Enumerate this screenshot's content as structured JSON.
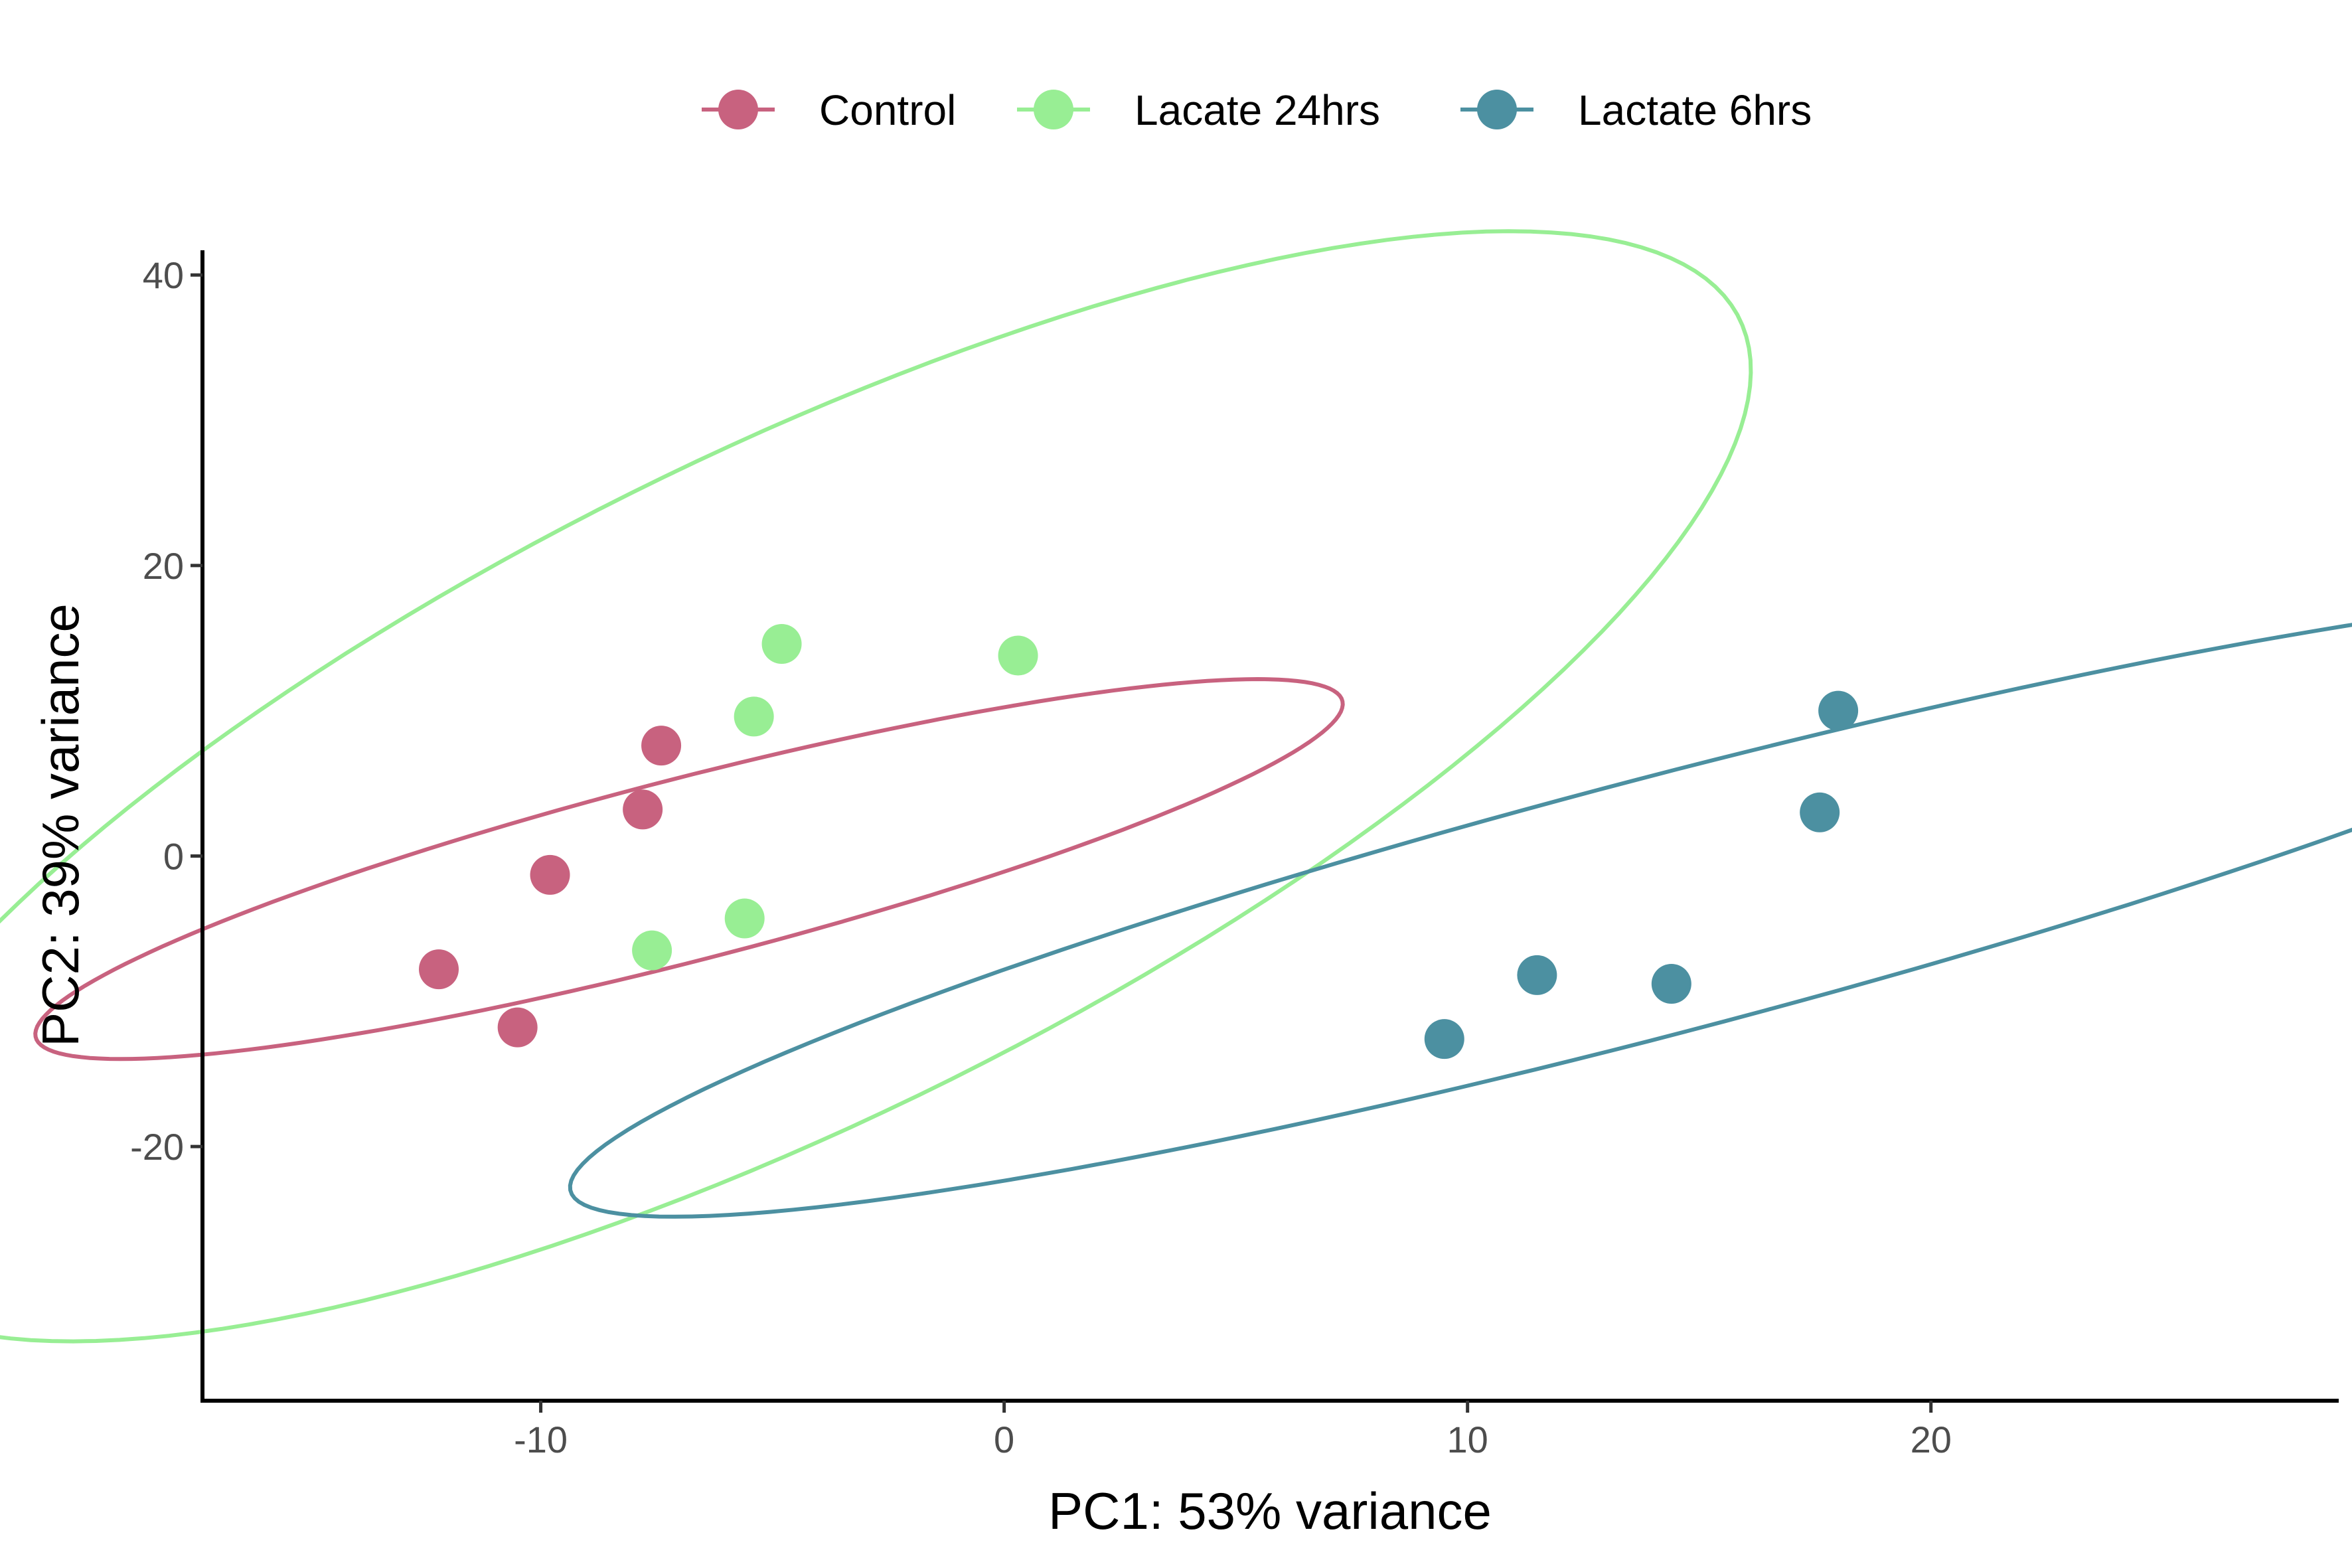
{
  "chart_data": {
    "type": "scatter",
    "title": "",
    "xlabel": "PC1: 53% variance",
    "ylabel": "PC2: 39% variance",
    "xlim": [
      -17.3,
      28.8
    ],
    "ylim": [
      -37.5,
      41.7
    ],
    "xticks": [
      -10,
      0,
      10,
      20
    ],
    "yticks": [
      -20,
      0,
      20,
      40
    ],
    "xtick_labels": [
      "-10",
      "0",
      "10",
      "20"
    ],
    "ytick_labels": [
      "-20",
      "0",
      "20",
      "40"
    ],
    "grid": false,
    "legend_position": "top",
    "series": [
      {
        "name": "Control",
        "color": "#C8627F",
        "points": [
          [
            -12.2,
            -7.8
          ],
          [
            -10.5,
            -11.8
          ],
          [
            -9.8,
            -1.3
          ],
          [
            -7.8,
            3.2
          ],
          [
            -7.4,
            7.6
          ]
        ],
        "ellipse": {
          "center": [
            -6.8,
            -0.9
          ],
          "semi_axes": [
            18.6,
            4.9
          ],
          "angle_deg": 42.5
        }
      },
      {
        "name": "Lacate 24hrs",
        "color": "#98EE94",
        "points": [
          [
            -7.6,
            -6.5
          ],
          [
            -5.6,
            -4.3
          ],
          [
            -5.4,
            9.6
          ],
          [
            -4.8,
            14.6
          ],
          [
            0.3,
            13.8
          ]
        ],
        "ellipse": {
          "center": [
            -4.6,
            4.8
          ],
          "semi_axes": [
            41.6,
            12.6
          ],
          "angle_deg": 65.5
        }
      },
      {
        "name": "Lactate 6hrs",
        "color": "#4C90A1",
        "points": [
          [
            9.5,
            -12.6
          ],
          [
            11.5,
            -8.2
          ],
          [
            14.4,
            -8.8
          ],
          [
            17.6,
            3.0
          ],
          [
            18.0,
            10.0
          ]
        ],
        "ellipse": {
          "center": [
            14.2,
            -3.4
          ],
          "semi_axes": [
            31.1,
            6.9
          ],
          "angle_deg": 42.0
        }
      }
    ]
  }
}
